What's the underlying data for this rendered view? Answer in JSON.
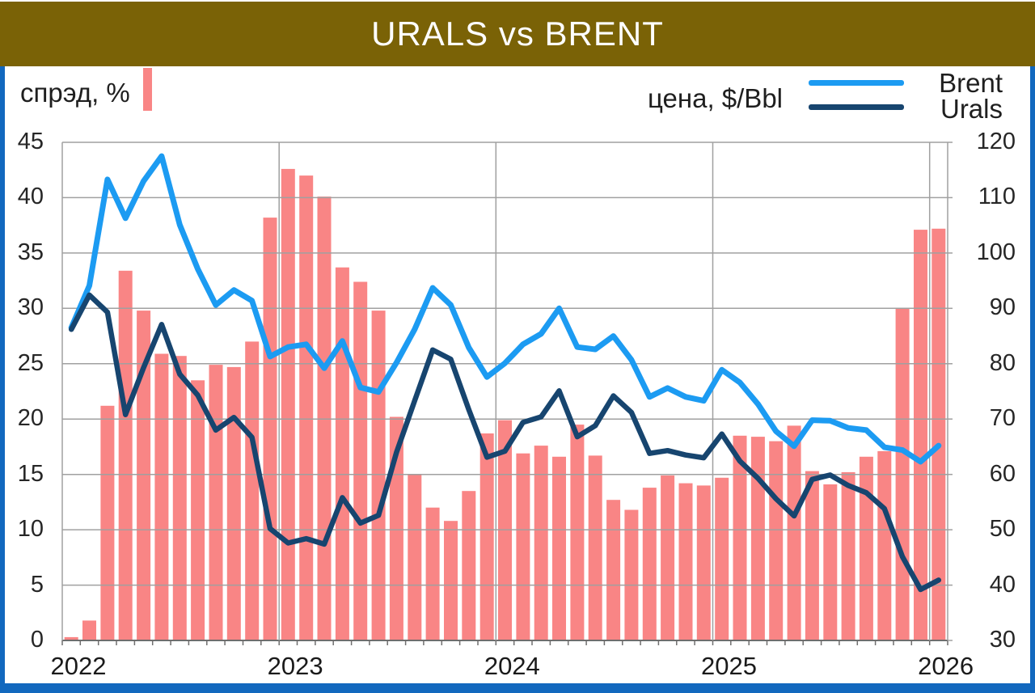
{
  "header": {
    "title": "URALS vs BRENT"
  },
  "legend": {
    "spread_label": "спрэд, %",
    "price_label": "цена, $/Bbl",
    "brent_label": "Brent",
    "urals_label": "Urals"
  },
  "axes": {
    "left_ticks": [
      "45",
      "40",
      "35",
      "30",
      "25",
      "20",
      "15",
      "10",
      "5",
      "0"
    ],
    "right_ticks": [
      "120",
      "110",
      "100",
      "90",
      "80",
      "70",
      "60",
      "50",
      "40",
      "30"
    ],
    "x_ticks": [
      "2022",
      "2023",
      "2024",
      "2025",
      "2026"
    ]
  },
  "colors": {
    "bar": "#f98585",
    "brent_line": "#1c9bf2",
    "urals_line": "#17456f",
    "gridline": "#a0a0a0",
    "axis_line": "#6e6e6e",
    "title_band": "#7a6206",
    "frame_blue": "#1268be",
    "text": "#262626"
  },
  "chart_data": {
    "type": "combo",
    "title": "URALS vs BRENT",
    "bar_series_name": "спрэд, %",
    "line_series_axis_label": "цена, $/Bbl",
    "left_axis": {
      "min": 0,
      "max": 45,
      "step": 5,
      "label": "спрэд, %"
    },
    "right_axis": {
      "min": 30,
      "max": 120,
      "step": 10,
      "label": "цена, $/Bbl"
    },
    "grid": true,
    "year_gridline_months": [
      12,
      24,
      36,
      48
    ],
    "year_label_months": [
      0,
      12,
      24,
      36,
      48
    ],
    "x": [
      "Jan 2022",
      "Feb 2022",
      "Mar 2022",
      "Apr 2022",
      "May 2022",
      "Jun 2022",
      "Jul 2022",
      "Aug 2022",
      "Sep 2022",
      "Oct 2022",
      "Nov 2022",
      "Dec 2022",
      "Jan 2023",
      "Feb 2023",
      "Mar 2023",
      "Apr 2023",
      "May 2023",
      "Jun 2023",
      "Jul 2023",
      "Aug 2023",
      "Sep 2023",
      "Oct 2023",
      "Nov 2023",
      "Dec 2023",
      "Jan 2024",
      "Feb 2024",
      "Mar 2024",
      "Apr 2024",
      "May 2024",
      "Jun 2024",
      "Jul 2024",
      "Aug 2024",
      "Sep 2024",
      "Oct 2024",
      "Nov 2024",
      "Dec 2024",
      "Jan 2025",
      "Feb 2025",
      "Mar 2025",
      "Apr 2025",
      "May 2025",
      "Jun 2025",
      "Jul 2025",
      "Aug 2025",
      "Sep 2025",
      "Oct 2025",
      "Nov 2025",
      "Dec 2025",
      "Jan 2026"
    ],
    "spread": {
      "name": "спрэд, %",
      "values": [
        0.3,
        1.8,
        21.2,
        33.4,
        29.8,
        25.9,
        25.7,
        23.5,
        24.9,
        24.7,
        27.0,
        38.2,
        42.6,
        42.0,
        40.1,
        33.7,
        32.4,
        29.8,
        20.2,
        15.0,
        12.0,
        10.8,
        13.5,
        18.7,
        19.9,
        16.9,
        17.6,
        16.6,
        19.5,
        16.7,
        12.7,
        11.8,
        13.8,
        14.9,
        14.2,
        14.0,
        14.7,
        18.5,
        18.4,
        18.0,
        19.4,
        15.3,
        14.1,
        15.2,
        16.6,
        17.1,
        30.0,
        37.1,
        37.2
      ]
    },
    "series": [
      {
        "name": "Brent",
        "axis": "right",
        "values": [
          86.5,
          94.1,
          113.3,
          106.3,
          113.0,
          117.5,
          105.1,
          97.1,
          90.6,
          93.3,
          91.4,
          81.3,
          83.0,
          83.5,
          79.2,
          84.1,
          75.7,
          74.9,
          80.2,
          86.2,
          93.7,
          90.6,
          82.9,
          77.6,
          80.1,
          83.5,
          85.4,
          90.0,
          83.0,
          82.6,
          85.0,
          80.7,
          74.0,
          75.6,
          74.0,
          73.3,
          78.9,
          76.6,
          72.7,
          67.8,
          65.1,
          69.8,
          69.7,
          68.4,
          68.0,
          64.9,
          64.4,
          62.3,
          65.2
        ]
      },
      {
        "name": "Urals",
        "axis": "right",
        "values": [
          86.2,
          92.4,
          89.3,
          70.8,
          79.3,
          87.1,
          78.1,
          74.3,
          68.0,
          70.3,
          66.7,
          50.2,
          47.6,
          48.4,
          47.4,
          55.8,
          51.2,
          52.6,
          64.0,
          73.3,
          82.5,
          80.8,
          71.7,
          63.1,
          64.2,
          69.4,
          70.4,
          75.1,
          66.8,
          68.8,
          74.2,
          71.2,
          63.8,
          64.3,
          63.5,
          63.0,
          67.3,
          62.4,
          59.3,
          55.6,
          52.5,
          59.1,
          59.9,
          58.0,
          56.7,
          53.8,
          45.1,
          39.2,
          40.9
        ]
      }
    ]
  }
}
